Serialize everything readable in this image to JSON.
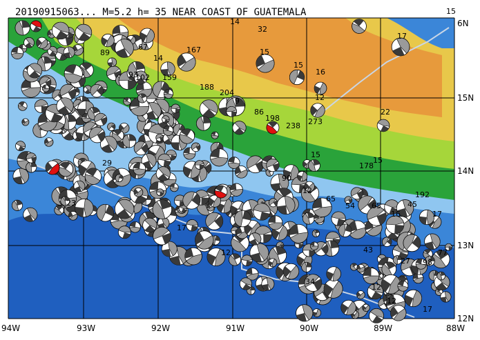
{
  "title": "20190915063... M=5.2 h= 35 NEAR COAST OF GUATEMALA",
  "lon_labels": [
    "94W",
    "93W",
    "92W",
    "91W",
    "90W",
    "89W",
    "88W"
  ],
  "lat_labels": [
    "12N",
    "13N",
    "14N",
    "15N",
    "6N"
  ],
  "colors": {
    "deep_ocean": "#1f5fbf",
    "mid_ocean": "#3b86d8",
    "shelf": "#8fc6f0",
    "coast_green": "#2aa33a",
    "low_land": "#a6d63a",
    "mid_land": "#e8c84a",
    "high_land": "#e79a3c",
    "grid": "#000000",
    "mechanism_fill": "#9a9a9a",
    "mechanism_highlight": "#e01010",
    "trench": "#c9d6e6"
  },
  "highlighted_event_labels": [
    "198",
    "12"
  ],
  "event_numbers": [
    "14",
    "32",
    "15",
    "15",
    "16",
    "17",
    "15",
    "89",
    "67",
    "14",
    "167",
    "102",
    "93",
    "159",
    "188",
    "204",
    "9",
    "86",
    "198",
    "238",
    "273",
    "22",
    "12",
    "15",
    "178",
    "15",
    "192",
    "45",
    "16",
    "17",
    "65",
    "54",
    "12",
    "90",
    "65",
    "23",
    "29",
    "17",
    "12",
    "34",
    "27",
    "77",
    "98",
    "12",
    "43",
    "17",
    "12"
  ]
}
